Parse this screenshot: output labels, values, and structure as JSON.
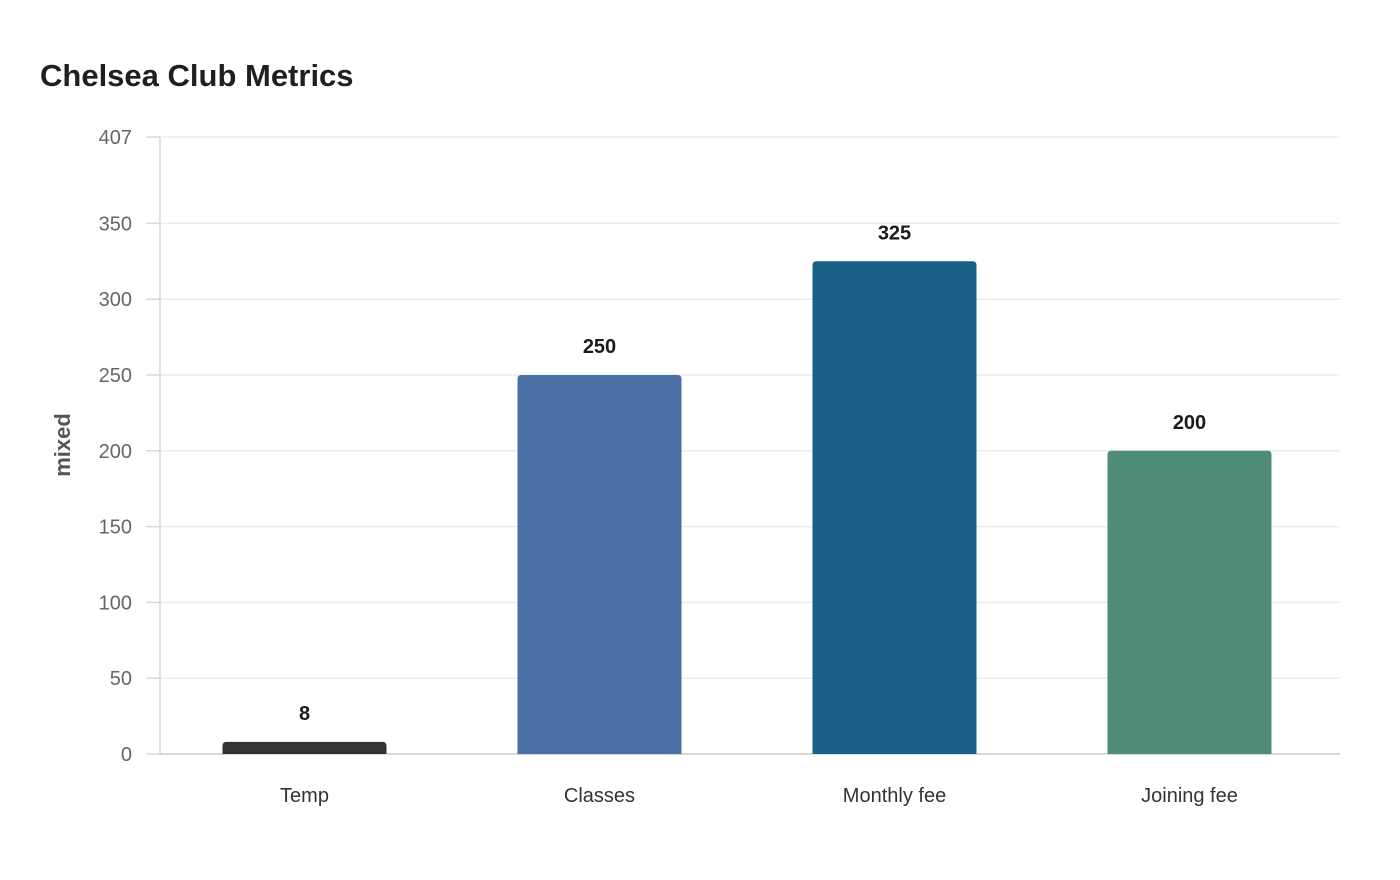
{
  "chart_data": {
    "type": "bar",
    "title": "Chelsea Club Metrics",
    "xlabel": "",
    "ylabel": "mixed",
    "categories": [
      "Temp",
      "Classes",
      "Monthly fee",
      "Joining fee"
    ],
    "values": [
      8,
      250,
      325,
      200
    ],
    "ylim": [
      0,
      407
    ],
    "yticks": [
      0,
      50,
      100,
      150,
      200,
      250,
      300,
      350,
      407
    ],
    "colors": [
      "#333333",
      "#4a6fa5",
      "#1a6187",
      "#4f8d7a"
    ],
    "grid": true,
    "legend": "none",
    "data_labels": true
  }
}
